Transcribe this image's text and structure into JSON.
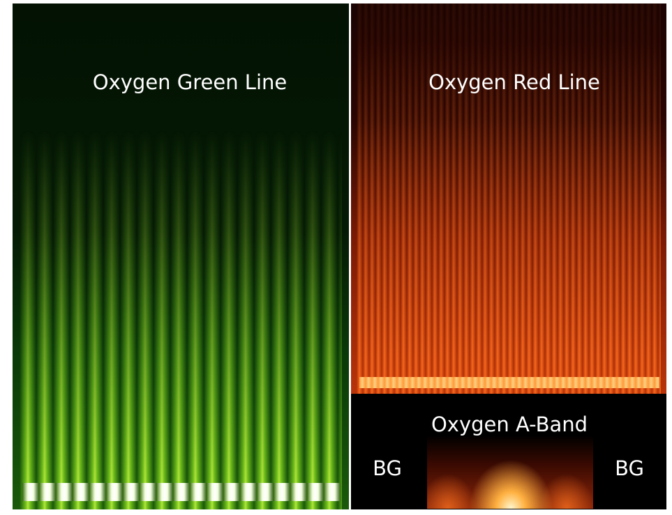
{
  "panels": [
    {
      "label": "Oxygen Green Line"
    },
    {
      "label": "Oxygen Red Line"
    },
    {
      "label": "Oxygen A-Band",
      "side_labels": [
        "BG",
        "BG"
      ]
    }
  ]
}
